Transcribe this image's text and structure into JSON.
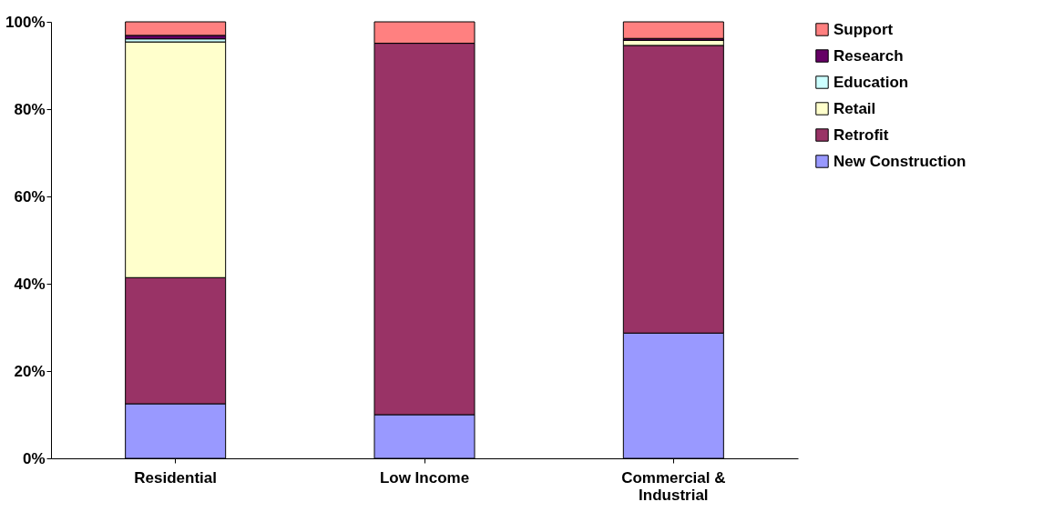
{
  "chart_data": {
    "type": "bar",
    "stacked": true,
    "categories": [
      "Residential",
      "Low Income",
      "Commercial & Industrial"
    ],
    "series": [
      {
        "name": "New Construction",
        "color": "#9999ff",
        "values": [
          12.5,
          10,
          28.7
        ]
      },
      {
        "name": "Retrofit",
        "color": "#993366",
        "values": [
          28.9,
          85.1,
          65.9
        ]
      },
      {
        "name": "Retail",
        "color": "#ffffcc",
        "values": [
          54,
          0,
          1.2
        ]
      },
      {
        "name": "Education",
        "color": "#ccffff",
        "values": [
          0.7,
          0,
          0
        ]
      },
      {
        "name": "Research",
        "color": "#660066",
        "values": [
          0.8,
          0,
          0.4
        ]
      },
      {
        "name": "Support",
        "color": "#ff8080",
        "values": [
          3.1,
          4.9,
          3.8
        ]
      }
    ],
    "ylim": [
      0,
      100
    ],
    "yticks": [
      {
        "value": 0,
        "label": "0%"
      },
      {
        "value": 20,
        "label": "20%"
      },
      {
        "value": 40,
        "label": "40%"
      },
      {
        "value": 60,
        "label": "60%"
      },
      {
        "value": 80,
        "label": "80%"
      },
      {
        "value": 100,
        "label": "100%"
      }
    ],
    "grid": false,
    "legend": "right"
  }
}
